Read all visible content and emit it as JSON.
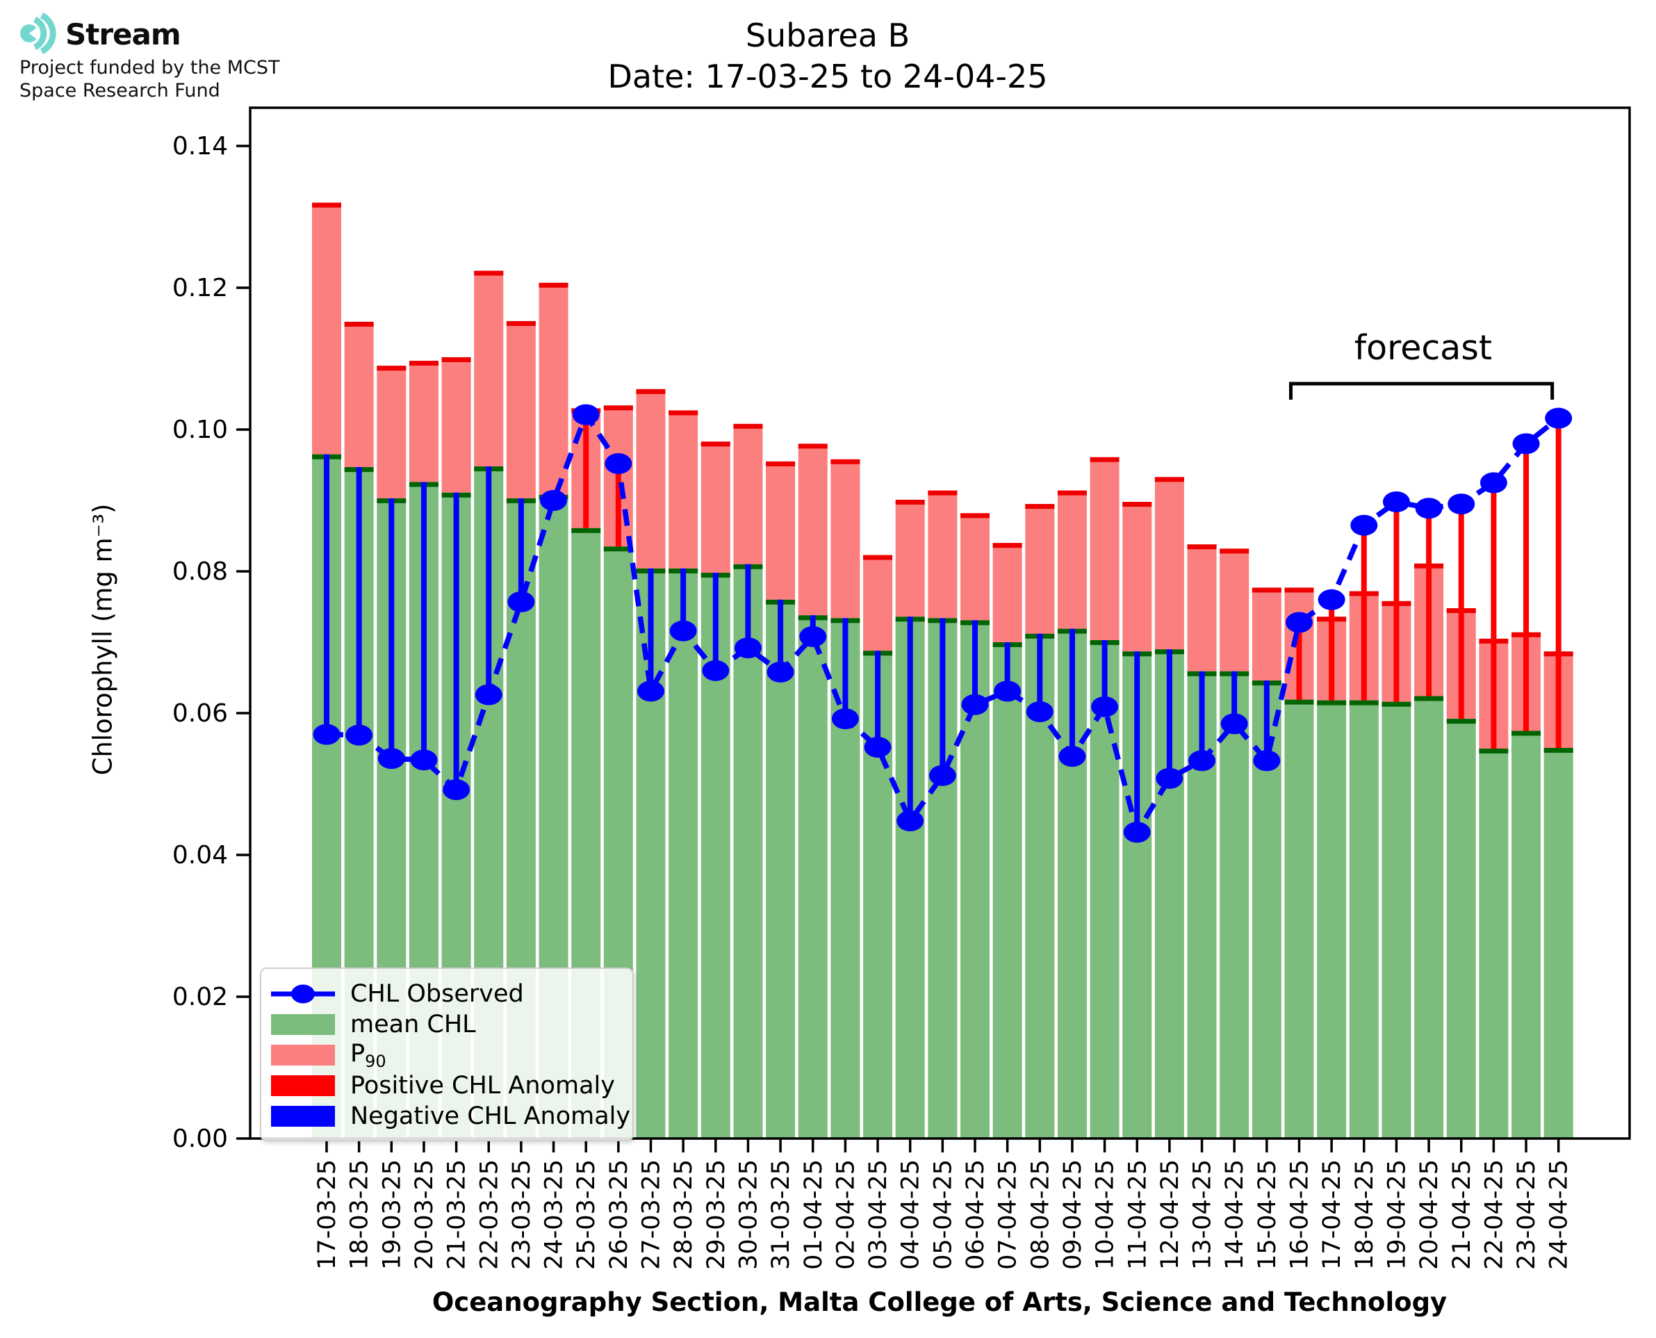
{
  "logo": {
    "brand": "Stream",
    "subtitle_line1": "Project funded by the MCST",
    "subtitle_line2": "Space Research Fund",
    "icon": "ripple-waves-icon",
    "icon_color": "#72d8cd"
  },
  "title": {
    "line1": "Subarea B",
    "line2": "Date: 17-03-25 to 24-04-25"
  },
  "axes": {
    "ylabel": "Chlorophyll (mg m⁻³)",
    "xlabel": "Oceanography Section, Malta College of Arts, Science and Technology",
    "ytick_labels": [
      "0.00",
      "0.02",
      "0.04",
      "0.06",
      "0.08",
      "0.10",
      "0.12",
      "0.14"
    ],
    "ytick_values": [
      0.0,
      0.02,
      0.04,
      0.06,
      0.08,
      0.1,
      0.12,
      0.14
    ],
    "grid": "off"
  },
  "legend": {
    "position": "lower left",
    "observed": "CHL Observed",
    "mean": "mean CHL",
    "p90_prefix": "P",
    "p90_sub": "90",
    "positive": "Positive CHL Anomaly",
    "negative": "Negative CHL Anomaly"
  },
  "annotations": {
    "forecast_label": "forecast",
    "forecast_start_date": "16-04-25",
    "forecast_end_date": "24-04-25"
  },
  "colors": {
    "mean_fill": "#7cbc7c",
    "mean_cap": "#016401",
    "p90_fill": "#fc7f7f",
    "p90_cap": "#ee0000",
    "positive_anomaly": "#ff0000",
    "negative_anomaly": "#0000ff",
    "observed": "#0000ff",
    "axis": "#000000"
  },
  "chart_data": {
    "type": "bar",
    "title": "Subarea B  Date: 17-03-25 to 24-04-25",
    "xlabel": "Oceanography Section, Malta College of Arts, Science and Technology",
    "ylabel": "Chlorophyll (mg m⁻³)",
    "ylim": [
      0,
      0.14
    ],
    "legend_position": "lower left",
    "grid": false,
    "forecast_start_index": 30,
    "categories": [
      "17-03-25",
      "18-03-25",
      "19-03-25",
      "20-03-25",
      "21-03-25",
      "22-03-25",
      "23-03-25",
      "24-03-25",
      "25-03-25",
      "26-03-25",
      "27-03-25",
      "28-03-25",
      "29-03-25",
      "30-03-25",
      "31-03-25",
      "01-04-25",
      "02-04-25",
      "03-04-25",
      "04-04-25",
      "05-04-25",
      "06-04-25",
      "07-04-25",
      "08-04-25",
      "09-04-25",
      "10-04-25",
      "11-04-25",
      "12-04-25",
      "13-04-25",
      "14-04-25",
      "15-04-25",
      "16-04-25",
      "17-04-25",
      "18-04-25",
      "19-04-25",
      "20-04-25",
      "21-04-25",
      "22-04-25",
      "23-04-25",
      "24-04-25"
    ],
    "series": [
      {
        "name": "mean CHL",
        "style": "bar",
        "values": [
          0.0965,
          0.0947,
          0.0903,
          0.0926,
          0.0911,
          0.0948,
          0.0903,
          0.0908,
          0.0861,
          0.0835,
          0.0804,
          0.0804,
          0.0798,
          0.081,
          0.076,
          0.0738,
          0.0734,
          0.0688,
          0.0736,
          0.0734,
          0.0731,
          0.07,
          0.0712,
          0.0719,
          0.0703,
          0.0687,
          0.069,
          0.0659,
          0.0659,
          0.0646,
          0.0619,
          0.0618,
          0.0618,
          0.0616,
          0.0624,
          0.0592,
          0.055,
          0.0575,
          0.0551
        ]
      },
      {
        "name": "P90",
        "style": "bar",
        "values": [
          0.132,
          0.1152,
          0.109,
          0.1097,
          0.1102,
          0.1224,
          0.1153,
          0.1207,
          0.103,
          0.1034,
          0.1057,
          0.1027,
          0.0983,
          0.1008,
          0.0955,
          0.098,
          0.0958,
          0.0823,
          0.0901,
          0.0914,
          0.0882,
          0.084,
          0.0895,
          0.0914,
          0.0961,
          0.0898,
          0.0933,
          0.0838,
          0.0832,
          0.0777,
          0.0777,
          0.0736,
          0.0772,
          0.0758,
          0.0811,
          0.0748,
          0.0705,
          0.0714,
          0.0687
        ]
      },
      {
        "name": "CHL Observed",
        "style": "line+marker",
        "values": [
          0.057,
          0.0569,
          0.0536,
          0.0534,
          0.0492,
          0.0626,
          0.0757,
          0.09,
          0.1021,
          0.0952,
          0.0631,
          0.0716,
          0.066,
          0.0692,
          0.0658,
          0.0708,
          0.0592,
          0.0552,
          0.0448,
          0.0512,
          0.0612,
          0.0631,
          0.0602,
          0.0539,
          0.0609,
          0.0432,
          0.0508,
          0.0533,
          0.0585,
          0.0533,
          0.0728,
          0.076,
          0.0865,
          0.0898,
          0.0889,
          0.0895,
          0.0925,
          0.098,
          0.1016
        ]
      }
    ]
  }
}
